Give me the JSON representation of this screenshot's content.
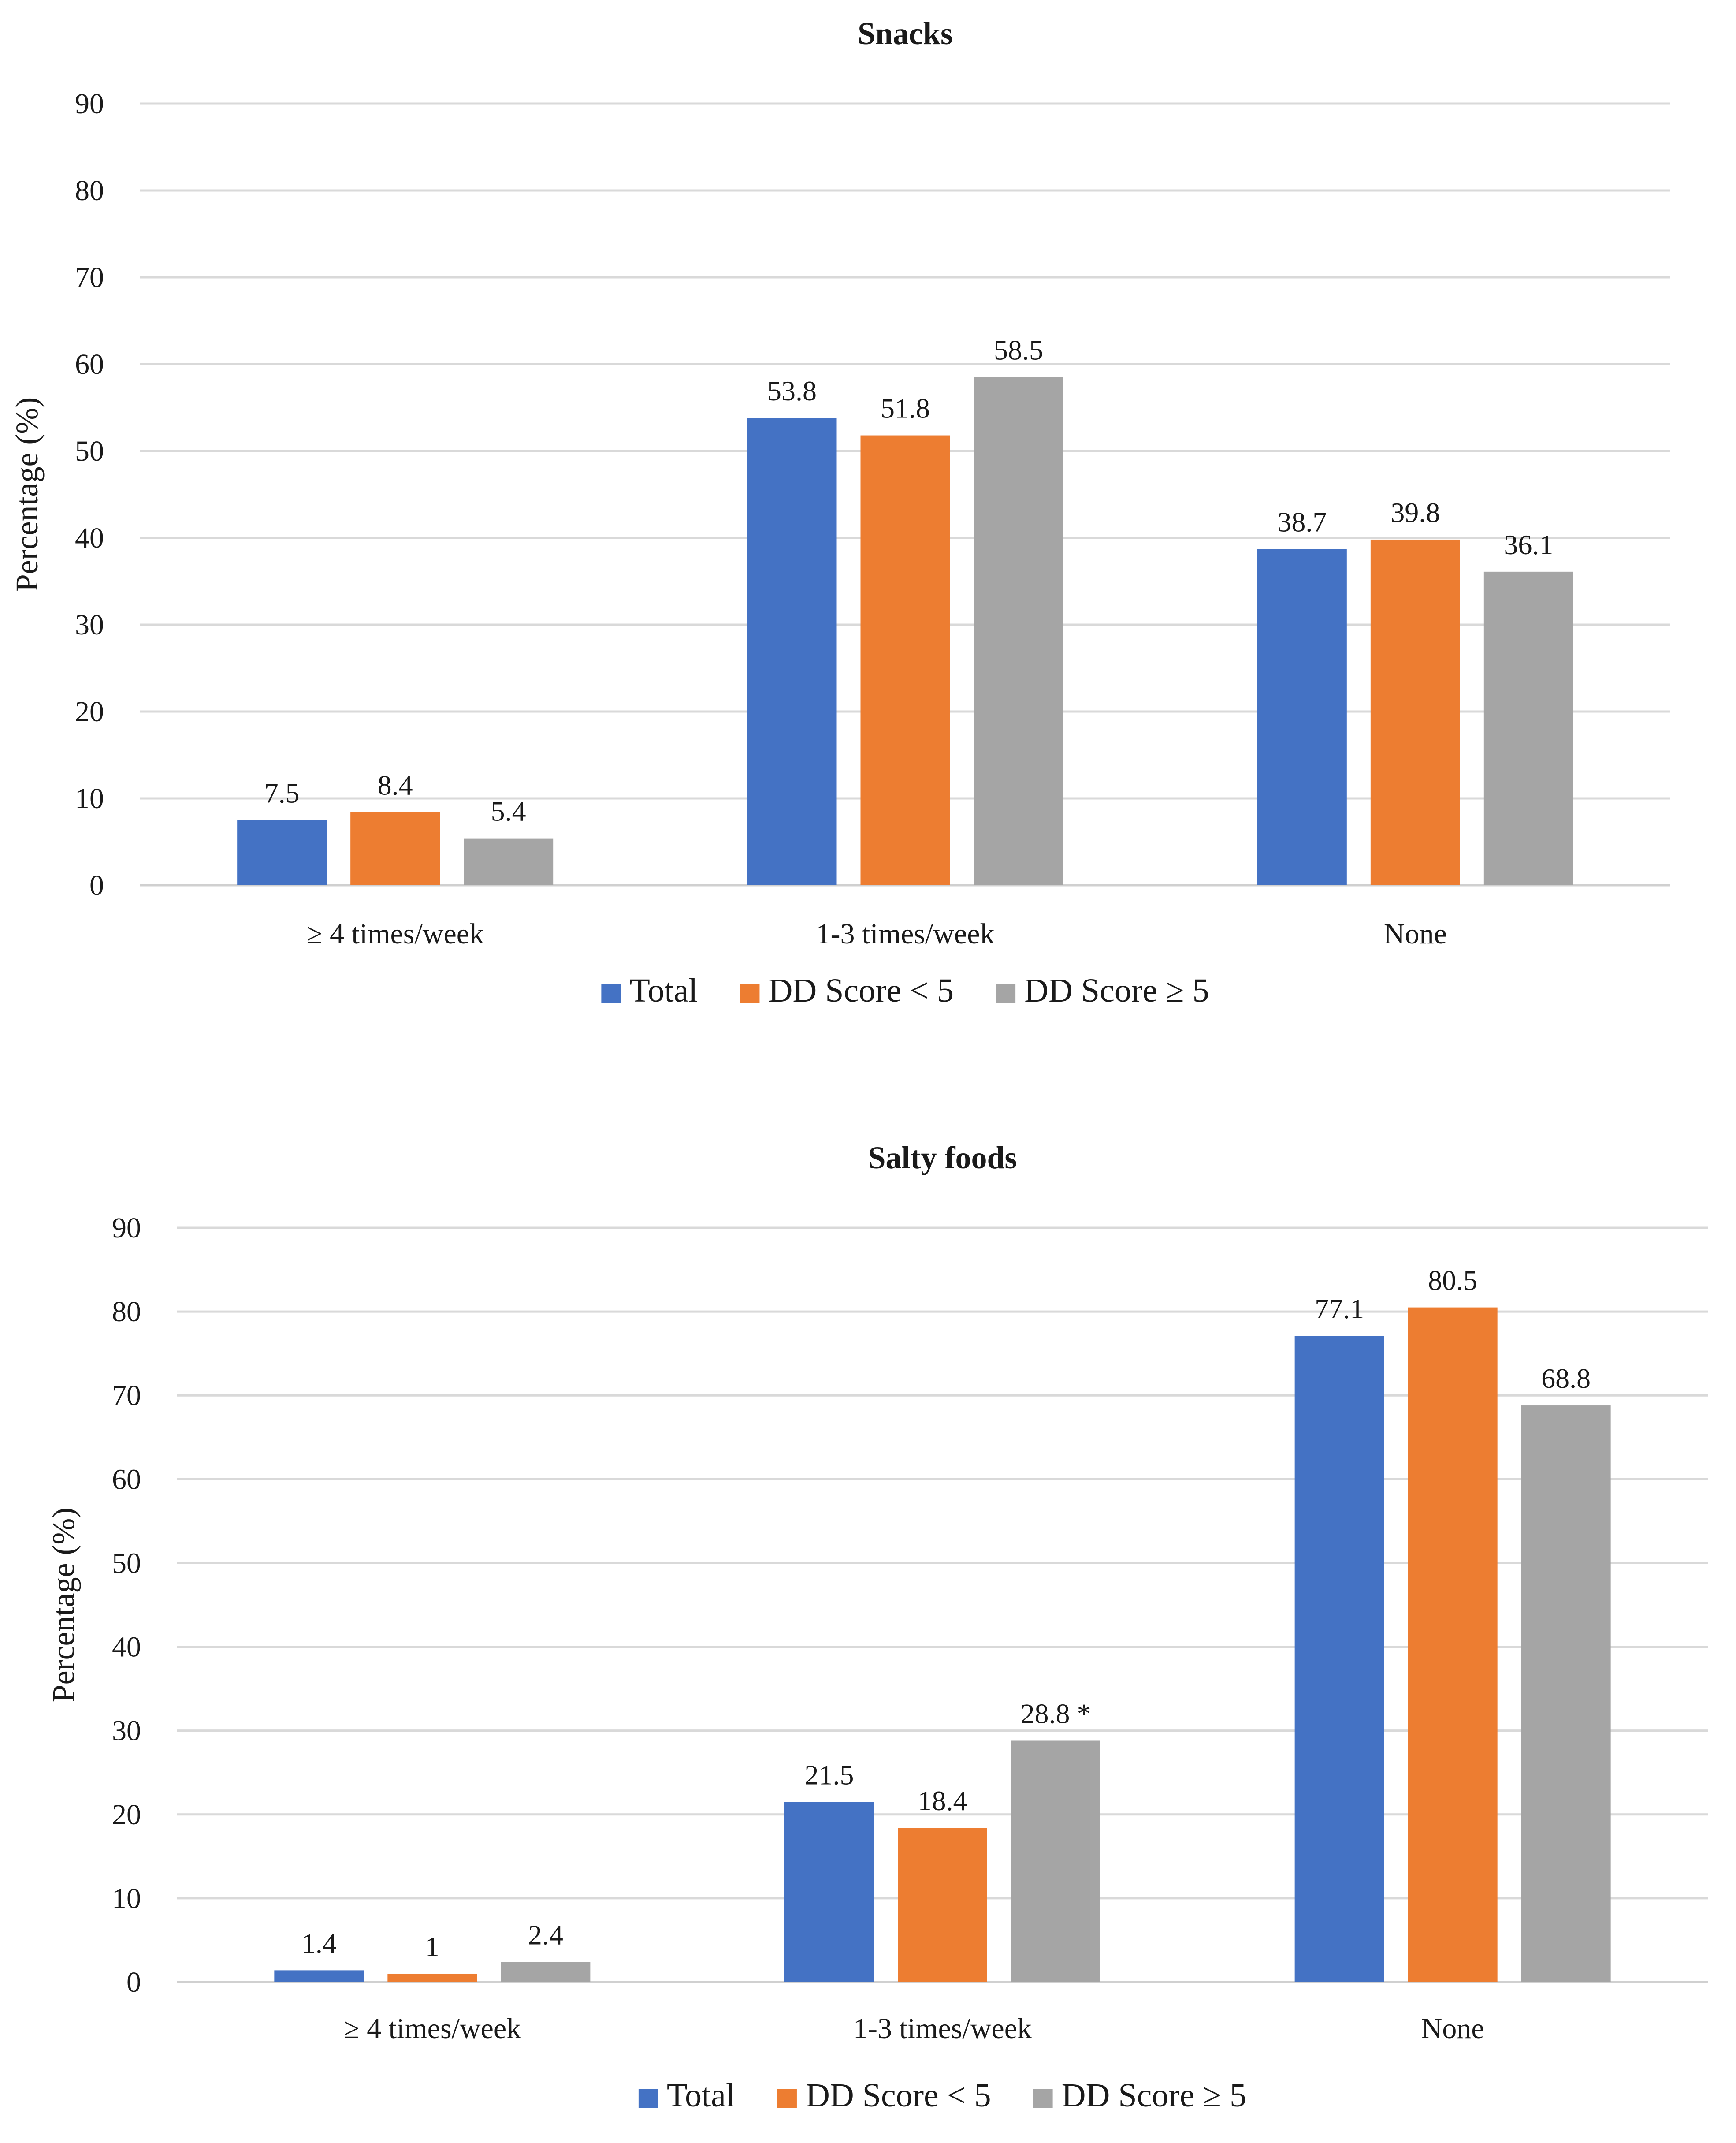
{
  "chart_data": [
    {
      "type": "bar",
      "title": "Snacks",
      "ylabel": "Percentage (%)",
      "xlabel": "",
      "ylim": [
        0,
        90
      ],
      "yticks": [
        0,
        10,
        20,
        30,
        40,
        50,
        60,
        70,
        80,
        90
      ],
      "grid": true,
      "legend_position": "bottom",
      "categories": [
        "≥ 4 times/week",
        "1-3 times/week",
        "None"
      ],
      "series": [
        {
          "name": "Total",
          "color": "#4472C4",
          "values": [
            7.5,
            53.8,
            38.7
          ],
          "labels": [
            "7.5",
            "53.8",
            "38.7"
          ]
        },
        {
          "name": "DD Score < 5",
          "color": "#ED7D31",
          "values": [
            8.4,
            51.8,
            39.8
          ],
          "labels": [
            "8.4",
            "51.8",
            "39.8"
          ]
        },
        {
          "name": "DD Score ≥ 5",
          "color": "#A5A5A5",
          "values": [
            5.4,
            58.5,
            36.1
          ],
          "labels": [
            "5.4",
            "58.5",
            "36.1"
          ]
        }
      ]
    },
    {
      "type": "bar",
      "title": "Salty foods",
      "ylabel": "Percentage (%)",
      "xlabel": "",
      "ylim": [
        0,
        90
      ],
      "yticks": [
        0,
        10,
        20,
        30,
        40,
        50,
        60,
        70,
        80,
        90
      ],
      "grid": true,
      "legend_position": "bottom",
      "categories": [
        "≥ 4 times/week",
        "1-3 times/week",
        "None"
      ],
      "series": [
        {
          "name": "Total",
          "color": "#4472C4",
          "values": [
            1.4,
            21.5,
            77.1
          ],
          "labels": [
            "1.4",
            "21.5",
            "77.1"
          ]
        },
        {
          "name": "DD Score < 5",
          "color": "#ED7D31",
          "values": [
            1,
            18.4,
            80.5
          ],
          "labels": [
            "1",
            "18.4",
            "80.5"
          ]
        },
        {
          "name": "DD Score ≥ 5",
          "color": "#A5A5A5",
          "values": [
            2.4,
            28.8,
            68.8
          ],
          "labels": [
            "2.4",
            "28.8 *",
            "68.8"
          ]
        }
      ]
    }
  ]
}
